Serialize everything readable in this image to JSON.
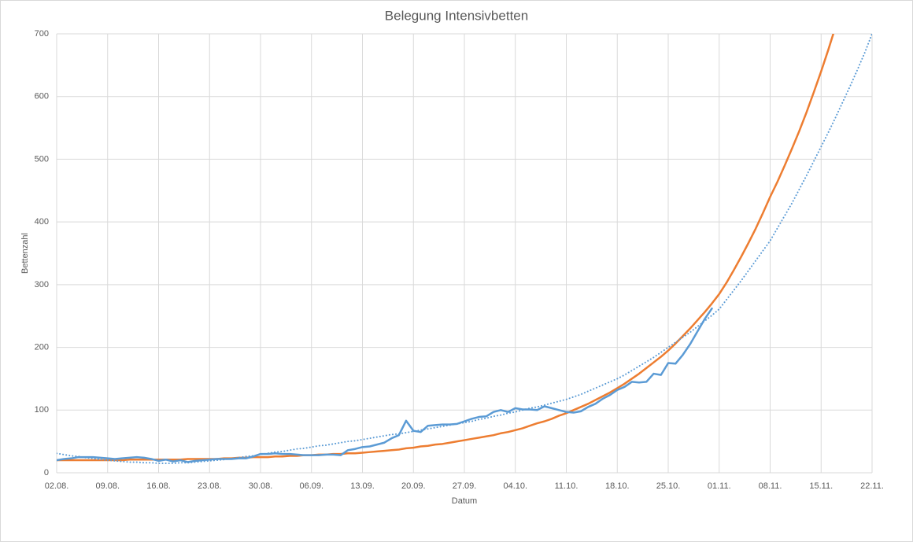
{
  "chart_data": {
    "type": "line",
    "title": "Belegung Intensivbetten",
    "x_label": "Datum",
    "y_label": "Bettenzahl",
    "categories": [
      "02.08.",
      null,
      null,
      null,
      null,
      null,
      null,
      "09.08.",
      null,
      null,
      null,
      null,
      null,
      null,
      "16.08.",
      null,
      null,
      null,
      null,
      null,
      null,
      "23.08.",
      null,
      null,
      null,
      null,
      null,
      null,
      "30.08.",
      null,
      null,
      null,
      null,
      null,
      null,
      "06.09.",
      null,
      null,
      null,
      null,
      null,
      null,
      "13.09.",
      null,
      null,
      null,
      null,
      null,
      null,
      "20.09.",
      null,
      null,
      null,
      null,
      null,
      null,
      "27.09.",
      null,
      null,
      null,
      null,
      null,
      null,
      "04.10.",
      null,
      null,
      null,
      null,
      null,
      null,
      "11.10.",
      null,
      null,
      null,
      null,
      null,
      null,
      "18.10.",
      null,
      null,
      null,
      null,
      null,
      null,
      "25.10.",
      null,
      null,
      null,
      null,
      null,
      null,
      "01.11.",
      null,
      null,
      null,
      null,
      null,
      null,
      "08.11.",
      null,
      null,
      null,
      null,
      null,
      null,
      "15.11.",
      null,
      null,
      null,
      null,
      null,
      null,
      "22.11."
    ],
    "ylim": [
      0,
      700
    ],
    "yticks": [
      0,
      100,
      200,
      300,
      400,
      500,
      600,
      700
    ],
    "grid": true,
    "series": [
      {
        "color": "#ed7d31",
        "style": "solid",
        "values": [
          20,
          20,
          20,
          20,
          20,
          20,
          20,
          20,
          20,
          20,
          21,
          21,
          21,
          21,
          21,
          21,
          21,
          21,
          22,
          22,
          22,
          22,
          22,
          23,
          23,
          24,
          24,
          25,
          25,
          25,
          26,
          26,
          27,
          27,
          28,
          28,
          29,
          29,
          30,
          30,
          31,
          31,
          32,
          33,
          34,
          35,
          36,
          37,
          39,
          40,
          42,
          43,
          45,
          46,
          48,
          50,
          52,
          54,
          56,
          58,
          60,
          63,
          65,
          68,
          71,
          75,
          79,
          82,
          86,
          91,
          95,
          100,
          105,
          110,
          116,
          122,
          128,
          135,
          142,
          150,
          158,
          167,
          176,
          185,
          195,
          206,
          218,
          230,
          243,
          256,
          270,
          285,
          303,
          323,
          344,
          366,
          389,
          414,
          440,
          464,
          490,
          517,
          545,
          575,
          607,
          640,
          675,
          712,
          null,
          null,
          null,
          null,
          null
        ]
      },
      {
        "color": "#5b9bd5",
        "style": "dotted",
        "values": [
          31,
          29,
          27,
          26,
          24,
          23,
          21,
          20,
          19,
          18,
          17,
          17,
          16,
          16,
          15,
          15,
          15,
          16,
          16,
          17,
          18,
          19,
          20,
          21,
          23,
          24,
          26,
          27,
          29,
          31,
          33,
          34,
          36,
          38,
          39,
          41,
          43,
          44,
          46,
          48,
          50,
          51,
          53,
          55,
          57,
          59,
          61,
          62,
          64,
          66,
          68,
          70,
          72,
          74,
          76,
          78,
          80,
          82,
          85,
          87,
          90,
          92,
          95,
          97,
          100,
          103,
          105,
          108,
          111,
          114,
          117,
          121,
          125,
          130,
          135,
          140,
          145,
          150,
          156,
          163,
          170,
          177,
          184,
          192,
          200,
          208,
          216,
          224,
          233,
          242,
          251,
          261,
          276,
          291,
          306,
          322,
          338,
          354,
          370,
          390,
          410,
          430,
          452,
          474,
          497,
          520,
          543,
          567,
          592,
          617,
          643,
          670,
          700
        ]
      },
      {
        "color": "#5b9bd5",
        "style": "solid",
        "values": [
          20,
          22,
          23,
          25,
          25,
          25,
          24,
          23,
          22,
          23,
          24,
          25,
          24,
          22,
          19,
          21,
          18,
          20,
          17,
          19,
          20,
          21,
          22,
          22,
          22,
          23,
          23,
          26,
          30,
          30,
          31,
          30,
          30,
          29,
          28,
          28,
          28,
          29,
          29,
          28,
          36,
          38,
          41,
          42,
          45,
          48,
          55,
          60,
          83,
          67,
          65,
          75,
          76,
          77,
          77,
          78,
          82,
          86,
          89,
          90,
          97,
          100,
          97,
          103,
          101,
          101,
          100,
          106,
          103,
          100,
          97,
          96,
          98,
          105,
          110,
          118,
          124,
          132,
          137,
          145,
          144,
          145,
          158,
          156,
          175,
          174,
          188,
          205,
          225,
          245,
          262,
          null,
          null,
          null,
          null,
          null,
          null,
          null,
          null,
          null,
          null,
          null,
          null,
          null,
          null,
          null,
          null,
          null,
          null,
          null,
          null,
          null,
          null
        ]
      }
    ]
  }
}
